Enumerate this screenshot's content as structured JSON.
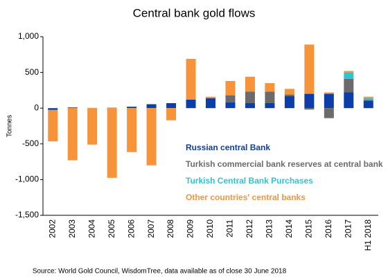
{
  "chart_data": {
    "type": "stacked_bar",
    "title": "Central bank gold flows",
    "y_label": "Tonnes",
    "source": "Source: World Gold Council, WisdomTree, data available as of close 30 June 2018",
    "categories": [
      "2002",
      "2003",
      "2004",
      "2005",
      "2006",
      "2007",
      "2008",
      "2009",
      "2010",
      "2011",
      "2012",
      "2013",
      "2014",
      "2015",
      "2016",
      "2017",
      "H1 2018"
    ],
    "series": [
      {
        "name": "Russian central Bank",
        "color": "#0b3ea8",
        "values": [
          -25,
          10,
          3,
          5,
          20,
          55,
          70,
          120,
          140,
          80,
          70,
          70,
          170,
          200,
          200,
          220,
          105
        ]
      },
      {
        "name": "Turkish commercial bank reserves at central bank",
        "color": "#6b6b6b",
        "values": [
          0,
          0,
          0,
          0,
          0,
          0,
          0,
          0,
          0,
          100,
          160,
          160,
          20,
          -20,
          -140,
          190,
          10
        ]
      },
      {
        "name": "Turkish Central Bank Purchases",
        "color": "#2ec5d3",
        "values": [
          0,
          0,
          0,
          0,
          0,
          0,
          0,
          0,
          0,
          0,
          0,
          0,
          0,
          0,
          0,
          90,
          30
        ]
      },
      {
        "name": "Other countries' central banks",
        "color": "#f7943a",
        "values": [
          -440,
          -730,
          -510,
          -975,
          -615,
          -800,
          -170,
          570,
          20,
          200,
          210,
          120,
          80,
          690,
          20,
          20,
          15
        ]
      }
    ],
    "ylim": [
      -1500,
      1000
    ],
    "yticks": [
      {
        "value": 1000,
        "label": "1,000"
      },
      500,
      0,
      -500,
      {
        "value": -1000,
        "label": "-1,000"
      },
      {
        "value": -1500,
        "label": "-1,500"
      }
    ]
  }
}
